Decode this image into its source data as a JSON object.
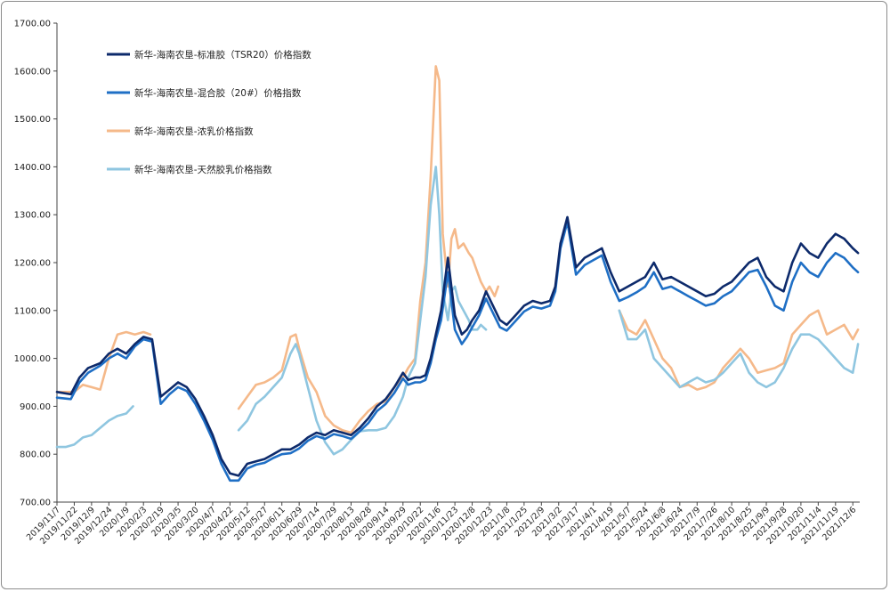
{
  "chart_data": {
    "type": "line",
    "title": "",
    "xlabel": "",
    "ylabel": "",
    "ylim": [
      700,
      1700
    ],
    "yticks": [
      "700.00",
      "800.00",
      "900.00",
      "1000.00",
      "1100.00",
      "1200.00",
      "1300.00",
      "1400.00",
      "1500.00",
      "1600.00",
      "1700.00"
    ],
    "x_tick_labels": [
      "2019/11/7",
      "2019/11/22",
      "2019/12/9",
      "2019/12/24",
      "2020/1/9",
      "2020/2/3",
      "2020/2/19",
      "2020/3/5",
      "2020/3/20",
      "2020/4/7",
      "2020/4/22",
      "2020/5/12",
      "2020/5/27",
      "2020/6/11",
      "2020/6/29",
      "2020/7/14",
      "2020/7/29",
      "2020/8/13",
      "2020/8/28",
      "2020/9/14",
      "2020/9/29",
      "2020/10/22",
      "2020/11/6",
      "2020/11/23",
      "2020/12/8",
      "2020/12/23",
      "2021/1/8",
      "2021/1/25",
      "2021/2/9",
      "2021/3/2",
      "2021/3/17",
      "2021/4/1",
      "2021/4/19",
      "2021/5/7",
      "2021/5/24",
      "2021/6/8",
      "2021/6/24",
      "2021/7/9",
      "2021/7/26",
      "2021/8/10",
      "2021/8/25",
      "2021/9/9",
      "2021/9/28",
      "2021/10/20",
      "2021/11/4",
      "2021/11/19",
      "2021/12/6"
    ],
    "x_range": [
      0,
      46.4
    ],
    "grid": false,
    "legend_position": "top-left",
    "series": [
      {
        "name": "新华-海南农垦-标准胶（TSR20）价格指数",
        "color": "#0d2a6b",
        "x": [
          0,
          0.8,
          1.3,
          1.8,
          2.5,
          3,
          3.5,
          4,
          4.5,
          5,
          5.5,
          6,
          6.5,
          7,
          7.5,
          8,
          8.5,
          9,
          9.5,
          10,
          10.5,
          11,
          11.5,
          12,
          12.5,
          13,
          13.5,
          14,
          14.5,
          15,
          15.5,
          16,
          16.5,
          17,
          17.5,
          18,
          18.5,
          19,
          19.5,
          20,
          20.3,
          20.7,
          21,
          21.3,
          21.6,
          21.9,
          22.2,
          22.6,
          23,
          23.4,
          23.7,
          24,
          24.4,
          24.8,
          25.2,
          25.6,
          26,
          26.5,
          27,
          27.5,
          28,
          28.5,
          28.8,
          29.1,
          29.5,
          30,
          30.5,
          31,
          31.5,
          32,
          32.5,
          33,
          33.5,
          34,
          34.5,
          35,
          35.5,
          36,
          36.5,
          37,
          37.5,
          38,
          38.5,
          39,
          39.5,
          40,
          40.5,
          41,
          41.5,
          42,
          42.5,
          43,
          43.5,
          44,
          44.5,
          45,
          45.5,
          46,
          46.3
        ],
        "values": [
          930,
          925,
          960,
          980,
          990,
          1010,
          1020,
          1010,
          1030,
          1045,
          1040,
          920,
          935,
          950,
          940,
          915,
          880,
          840,
          790,
          760,
          755,
          780,
          785,
          790,
          800,
          810,
          810,
          820,
          835,
          845,
          840,
          850,
          845,
          840,
          855,
          875,
          900,
          915,
          940,
          970,
          955,
          960,
          960,
          965,
          1000,
          1050,
          1100,
          1210,
          1090,
          1050,
          1060,
          1080,
          1100,
          1140,
          1110,
          1080,
          1070,
          1090,
          1110,
          1120,
          1115,
          1120,
          1150,
          1240,
          1295,
          1190,
          1210,
          1220,
          1230,
          1180,
          1140,
          1150,
          1160,
          1170,
          1200,
          1165,
          1170,
          1160,
          1150,
          1140,
          1130,
          1135,
          1150,
          1160,
          1180,
          1200,
          1210,
          1170,
          1150,
          1140,
          1200,
          1240,
          1220,
          1210,
          1240,
          1260,
          1250,
          1230,
          1220
        ]
      },
      {
        "name": "新华-海南农垦-混合胶（20#）价格指数",
        "color": "#1f6fc5",
        "x": [
          0,
          0.8,
          1.3,
          1.8,
          2.5,
          3,
          3.5,
          4,
          4.5,
          5,
          5.5,
          6,
          6.5,
          7,
          7.5,
          8,
          8.5,
          9,
          9.5,
          10,
          10.5,
          11,
          11.5,
          12,
          12.5,
          13,
          13.5,
          14,
          14.5,
          15,
          15.5,
          16,
          16.5,
          17,
          17.5,
          18,
          18.5,
          19,
          19.5,
          20,
          20.3,
          20.7,
          21,
          21.3,
          21.6,
          21.9,
          22.2,
          22.6,
          23,
          23.4,
          23.7,
          24,
          24.4,
          24.8,
          25.2,
          25.6,
          26,
          26.5,
          27,
          27.5,
          28,
          28.5,
          28.8,
          29.1,
          29.5,
          30,
          30.5,
          31,
          31.5,
          32,
          32.5,
          33,
          33.5,
          34,
          34.5,
          35,
          35.5,
          36,
          36.5,
          37,
          37.5,
          38,
          38.5,
          39,
          39.5,
          40,
          40.5,
          41,
          41.5,
          42,
          42.5,
          43,
          43.5,
          44,
          44.5,
          45,
          45.5,
          46,
          46.3
        ],
        "values": [
          918,
          915,
          950,
          970,
          985,
          1000,
          1010,
          1000,
          1025,
          1040,
          1035,
          905,
          925,
          940,
          932,
          905,
          870,
          830,
          780,
          745,
          745,
          770,
          778,
          782,
          792,
          800,
          802,
          812,
          828,
          838,
          832,
          842,
          838,
          832,
          848,
          865,
          890,
          905,
          928,
          958,
          945,
          950,
          950,
          955,
          990,
          1040,
          1080,
          1180,
          1060,
          1030,
          1045,
          1065,
          1090,
          1125,
          1095,
          1065,
          1058,
          1078,
          1098,
          1108,
          1104,
          1110,
          1140,
          1230,
          1285,
          1175,
          1195,
          1205,
          1215,
          1160,
          1120,
          1128,
          1138,
          1150,
          1180,
          1145,
          1150,
          1140,
          1130,
          1120,
          1110,
          1115,
          1130,
          1140,
          1160,
          1180,
          1185,
          1150,
          1110,
          1100,
          1160,
          1200,
          1180,
          1170,
          1200,
          1220,
          1210,
          1190,
          1180
        ]
      },
      {
        "name": "新华-海南农垦-浓乳价格指数",
        "color": "#f5b98a",
        "segments": [
          {
            "x": [
              0,
              1,
              1.5,
              2,
              2.5,
              3,
              3.5,
              4,
              4.5,
              5,
              5.4
            ],
            "values": [
              930,
              930,
              945,
              940,
              935,
              1000,
              1050,
              1055,
              1050,
              1055,
              1050
            ]
          },
          {
            "x": [
              10.5,
              11,
              11.5,
              12,
              12.5,
              13,
              13.5,
              13.8,
              14,
              14.5,
              15,
              15.5,
              16,
              16.5,
              17,
              17.5,
              18,
              18.5,
              19,
              19.5,
              20,
              20.3,
              20.7,
              21,
              21.3,
              21.6,
              21.9,
              22.1,
              22.3,
              22.6,
              22.8,
              23,
              23.2,
              23.5,
              23.8,
              24,
              24.3,
              24.5,
              24.8,
              25,
              25.3,
              25.5
            ],
            "values": [
              895,
              920,
              945,
              950,
              960,
              975,
              1045,
              1050,
              1020,
              960,
              930,
              880,
              860,
              850,
              845,
              870,
              890,
              905,
              910,
              940,
              960,
              980,
              1000,
              1120,
              1200,
              1380,
              1610,
              1580,
              1260,
              1150,
              1250,
              1270,
              1230,
              1240,
              1220,
              1210,
              1180,
              1160,
              1140,
              1150,
              1130,
              1150
            ]
          },
          {
            "x": [
              32.5,
              33,
              33.5,
              34,
              34.5,
              35,
              35.5,
              36,
              36.5,
              37,
              37.5,
              38,
              38.5,
              39,
              39.5,
              40,
              40.5,
              41,
              41.5,
              42,
              42.5,
              43,
              43.5,
              44,
              44.5,
              45,
              45.5,
              46,
              46.3
            ],
            "values": [
              1100,
              1060,
              1050,
              1080,
              1040,
              1000,
              980,
              940,
              945,
              935,
              940,
              950,
              980,
              1000,
              1020,
              1000,
              970,
              975,
              980,
              990,
              1050,
              1070,
              1090,
              1100,
              1050,
              1060,
              1070,
              1040,
              1060
            ]
          }
        ]
      },
      {
        "name": "新华-海南农垦-天然胶乳价格指数",
        "color": "#8fc6e0",
        "segments": [
          {
            "x": [
              0,
              0.5,
              1,
              1.5,
              2,
              2.5,
              3,
              3.5,
              4,
              4.4
            ],
            "values": [
              815,
              815,
              820,
              835,
              840,
              855,
              870,
              880,
              885,
              900
            ]
          },
          {
            "x": [
              10.5,
              11,
              11.5,
              12,
              12.5,
              13,
              13.5,
              13.8,
              14,
              14.5,
              15,
              15.5,
              16,
              16.5,
              17,
              17.5,
              18,
              18.5,
              19,
              19.5,
              20,
              20.3,
              20.7,
              21,
              21.3,
              21.6,
              21.9,
              22.1,
              22.3,
              22.6,
              22.8,
              23,
              23.2,
              23.5,
              23.8,
              24,
              24.3,
              24.5,
              24.8
            ],
            "values": [
              850,
              870,
              905,
              920,
              940,
              960,
              1010,
              1030,
              1010,
              940,
              870,
              825,
              800,
              810,
              830,
              848,
              850,
              850,
              855,
              880,
              920,
              960,
              990,
              1080,
              1170,
              1320,
              1400,
              1300,
              1140,
              1080,
              1140,
              1150,
              1120,
              1100,
              1080,
              1060,
              1060,
              1070,
              1060
            ]
          },
          {
            "x": [
              32.5,
              33,
              33.5,
              34,
              34.5,
              35,
              35.5,
              36,
              36.5,
              37,
              37.5,
              38,
              38.5,
              39,
              39.5,
              40,
              40.5,
              41,
              41.5,
              42,
              42.5,
              43,
              43.5,
              44,
              44.5,
              45,
              45.5,
              46,
              46.3
            ],
            "values": [
              1100,
              1040,
              1040,
              1060,
              1000,
              980,
              960,
              940,
              950,
              960,
              950,
              955,
              970,
              990,
              1010,
              970,
              950,
              940,
              950,
              980,
              1020,
              1050,
              1050,
              1040,
              1020,
              1000,
              980,
              970,
              1030
            ]
          }
        ]
      }
    ]
  }
}
